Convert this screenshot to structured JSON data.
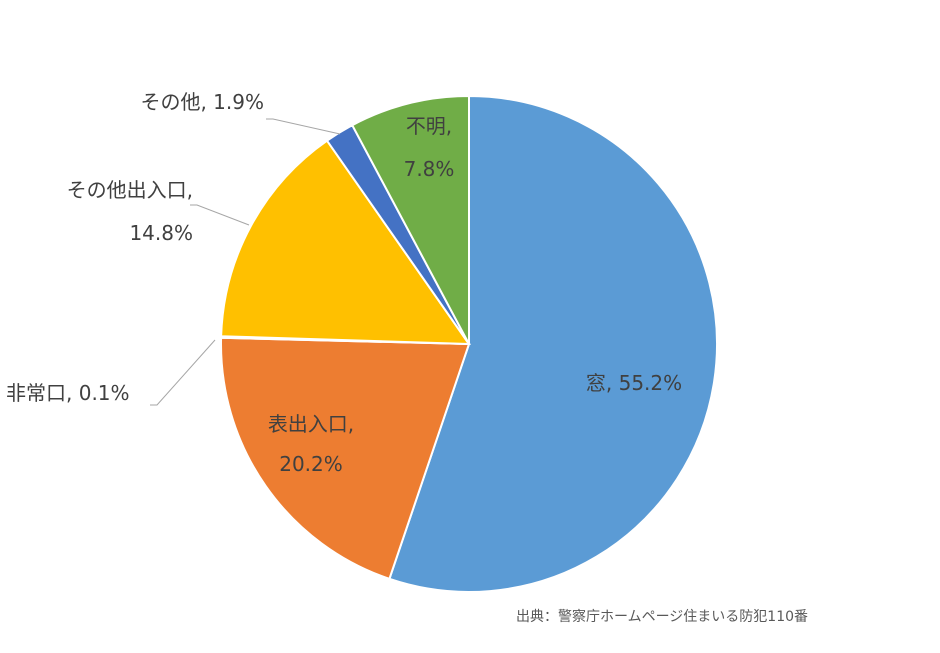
{
  "chart_data": {
    "type": "pie",
    "title": "",
    "start_angle_deg": 0,
    "direction": "clockwise",
    "slices": [
      {
        "label": "窓",
        "value": 55.2,
        "display": "窓, 55.2%",
        "color": "#5B9BD5"
      },
      {
        "label": "表出入口",
        "value": 20.2,
        "display_lines": [
          "表出入口,",
          "20.2%"
        ],
        "color": "#ED7D31"
      },
      {
        "label": "非常口",
        "value": 0.1,
        "display": "非常口, 0.1%",
        "color": "#A5A5A5"
      },
      {
        "label": "その他出入口",
        "value": 14.8,
        "display_lines": [
          "その他出入口,",
          "14.8%"
        ],
        "color": "#FFC000"
      },
      {
        "label": "その他",
        "value": 1.9,
        "display": "その他, 1.9%",
        "color": "#4472C4"
      },
      {
        "label": "不明",
        "value": 7.8,
        "display_lines": [
          "不明,",
          "7.8%"
        ],
        "color": "#70AD47"
      }
    ]
  },
  "source_note": "出典：警察庁ホームページ住まいる防犯110番"
}
